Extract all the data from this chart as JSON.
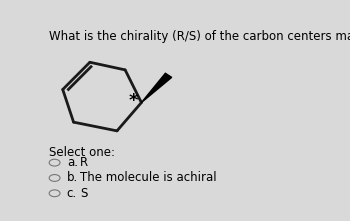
{
  "title": "What is the chirality (R/S) of the carbon centers marked with an asterisk?",
  "title_fontsize": 8.5,
  "background_color": "#d9d9d9",
  "molecule_box_color": "#e8e8e8",
  "options": [
    {
      "label": "a.",
      "text": "R"
    },
    {
      "label": "b.",
      "text": "The molecule is achiral"
    },
    {
      "label": "c.",
      "text": "S"
    }
  ],
  "select_text": "Select one:",
  "option_fontsize": 8.5,
  "select_fontsize": 8.5,
  "ring_color": "#1a1a1a",
  "ring_lw": 2.0,
  "box_facecolor": "#e2e2e2",
  "box_edgecolor": "#bbbbbb"
}
